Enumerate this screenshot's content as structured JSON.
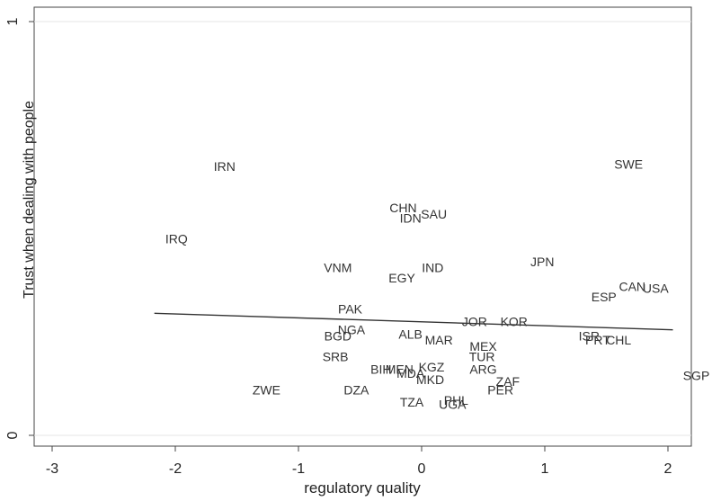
{
  "chart_data": {
    "type": "scatter",
    "title": "",
    "xlabel": "regulatory quality",
    "ylabel": "Trust when dealing with people",
    "xlim": [
      -3.1,
      2.2
    ],
    "ylim": [
      -0.03,
      1.03
    ],
    "x_ticks": [
      -3,
      -2,
      -1,
      0,
      1,
      2
    ],
    "x_tick_labels": [
      "-3",
      "-2",
      "-1",
      "0",
      "1",
      "2"
    ],
    "y_ticks": [
      0,
      1
    ],
    "y_tick_labels": [
      "0",
      "1"
    ],
    "grid": "horizontal",
    "legend": "none",
    "fit_line": {
      "x": [
        -2.17,
        2.04
      ],
      "y": [
        0.295,
        0.255
      ]
    },
    "points": [
      {
        "label": "IRN",
        "x": -1.6,
        "y": 0.65
      },
      {
        "label": "SWE",
        "x": 1.68,
        "y": 0.655
      },
      {
        "label": "CHN",
        "x": -0.15,
        "y": 0.55
      },
      {
        "label": "SAU",
        "x": 0.1,
        "y": 0.535
      },
      {
        "label": "IDN",
        "x": -0.09,
        "y": 0.525
      },
      {
        "label": "IRQ",
        "x": -1.99,
        "y": 0.475
      },
      {
        "label": "JPN",
        "x": 0.98,
        "y": 0.42
      },
      {
        "label": "VNM",
        "x": -0.68,
        "y": 0.405
      },
      {
        "label": "IND",
        "x": 0.09,
        "y": 0.405
      },
      {
        "label": "EGY",
        "x": -0.16,
        "y": 0.38
      },
      {
        "label": "CAN",
        "x": 1.71,
        "y": 0.36
      },
      {
        "label": "USA",
        "x": 1.9,
        "y": 0.355
      },
      {
        "label": "ESP",
        "x": 1.48,
        "y": 0.335
      },
      {
        "label": "PAK",
        "x": -0.58,
        "y": 0.305
      },
      {
        "label": "JOR",
        "x": 0.43,
        "y": 0.275
      },
      {
        "label": "KOR",
        "x": 0.75,
        "y": 0.275
      },
      {
        "label": "NGA",
        "x": -0.57,
        "y": 0.255
      },
      {
        "label": "ALB",
        "x": -0.09,
        "y": 0.245
      },
      {
        "label": "BGD",
        "x": -0.68,
        "y": 0.24
      },
      {
        "label": "MAR",
        "x": 0.14,
        "y": 0.23
      },
      {
        "label": "ISR",
        "x": 1.36,
        "y": 0.24
      },
      {
        "label": "PRT",
        "x": 1.43,
        "y": 0.23
      },
      {
        "label": "CHL",
        "x": 1.6,
        "y": 0.23
      },
      {
        "label": "MEX",
        "x": 0.5,
        "y": 0.215
      },
      {
        "label": "TUR",
        "x": 0.49,
        "y": 0.19
      },
      {
        "label": "SRB",
        "x": -0.7,
        "y": 0.19
      },
      {
        "label": "KGZ",
        "x": 0.08,
        "y": 0.165
      },
      {
        "label": "ARG",
        "x": 0.5,
        "y": 0.16
      },
      {
        "label": "BIH",
        "x": -0.33,
        "y": 0.16
      },
      {
        "label": "MEN",
        "x": -0.18,
        "y": 0.16
      },
      {
        "label": "MDA",
        "x": -0.09,
        "y": 0.15
      },
      {
        "label": "MKD",
        "x": 0.07,
        "y": 0.135
      },
      {
        "label": "SGP",
        "x": 2.23,
        "y": 0.145
      },
      {
        "label": "ZAF",
        "x": 0.7,
        "y": 0.13
      },
      {
        "label": "ZWE",
        "x": -1.26,
        "y": 0.11
      },
      {
        "label": "DZA",
        "x": -0.53,
        "y": 0.11
      },
      {
        "label": "PER",
        "x": 0.64,
        "y": 0.11
      },
      {
        "label": "PHL",
        "x": 0.28,
        "y": 0.085
      },
      {
        "label": "TZA",
        "x": -0.08,
        "y": 0.08
      },
      {
        "label": "UGA",
        "x": 0.25,
        "y": 0.075
      }
    ]
  }
}
